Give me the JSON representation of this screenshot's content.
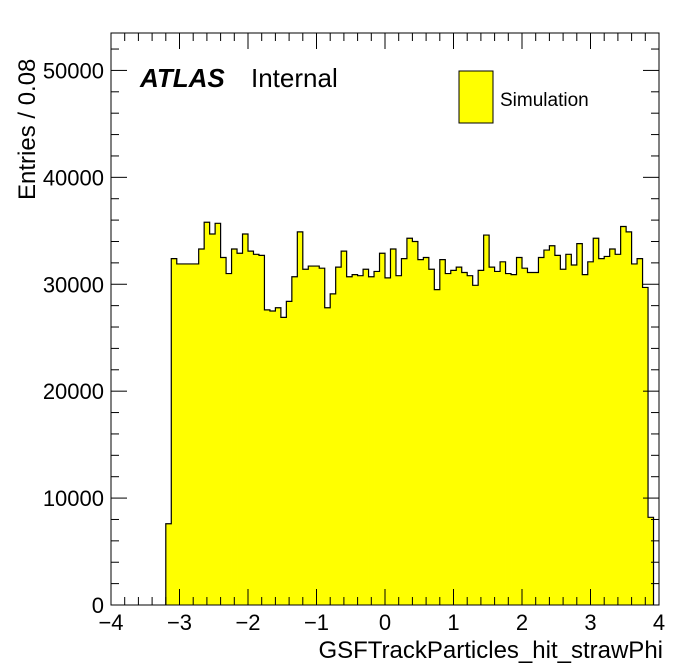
{
  "chart_data": {
    "type": "bar",
    "style": "histogram-step",
    "xlabel": "GSFTrackParticles_hit_strawPhi",
    "ylabel": "Entries / 0.08",
    "xlim": [
      -4,
      4
    ],
    "ylim": [
      0,
      53500
    ],
    "bin_width": 0.08,
    "x_start": -3.2,
    "x_ticks": [
      "−4",
      "−3",
      "−2",
      "−1",
      "0",
      "1",
      "2",
      "3",
      "4"
    ],
    "x_tick_values": [
      -4,
      -3,
      -2,
      -1,
      0,
      1,
      2,
      3,
      4
    ],
    "y_ticks": [
      "0",
      "10000",
      "20000",
      "30000",
      "40000",
      "50000"
    ],
    "y_tick_values": [
      0,
      10000,
      20000,
      30000,
      40000,
      50000
    ],
    "atlas_label": "ATLAS",
    "atlas_status": "Internal",
    "legend": "top-right",
    "series": [
      {
        "name": "Simulation",
        "color": "#ffff00",
        "values": [
          7600,
          32400,
          31900,
          31900,
          31900,
          31900,
          33300,
          35800,
          34700,
          35700,
          32500,
          31000,
          33300,
          32900,
          34700,
          33100,
          32800,
          32700,
          27600,
          27500,
          27800,
          26900,
          28400,
          30700,
          34900,
          31400,
          31700,
          31700,
          31500,
          27800,
          29100,
          31600,
          33100,
          30700,
          30900,
          30800,
          31400,
          30700,
          31200,
          32900,
          30600,
          33300,
          30800,
          32400,
          34300,
          34000,
          32300,
          32500,
          31400,
          29500,
          32300,
          31000,
          31300,
          31600,
          31100,
          30800,
          29900,
          31300,
          34600,
          31600,
          31200,
          32100,
          31000,
          30900,
          32500,
          31500,
          31100,
          31100,
          32500,
          33200,
          33600,
          32700,
          31400,
          32800,
          31800,
          33800,
          30900,
          32100,
          34300,
          32400,
          32600,
          33300,
          32800,
          35400,
          34900,
          31900,
          32400,
          29700,
          8200
        ]
      }
    ]
  }
}
